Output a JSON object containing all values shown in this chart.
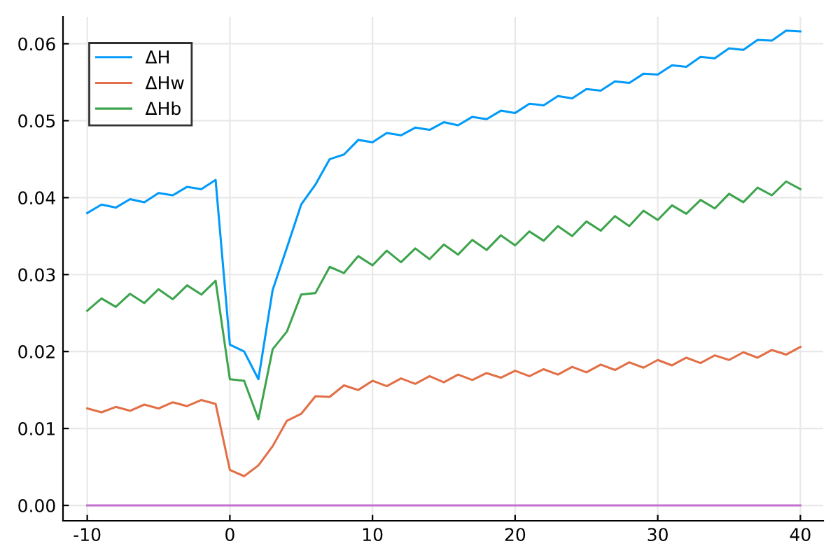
{
  "chart_data": {
    "type": "line",
    "x": [
      -10,
      -9,
      -8,
      -7,
      -6,
      -5,
      -4,
      -3,
      -2,
      -1,
      0,
      1,
      2,
      3,
      4,
      5,
      6,
      7,
      8,
      9,
      10,
      11,
      12,
      13,
      14,
      15,
      16,
      17,
      18,
      19,
      20,
      21,
      22,
      23,
      24,
      25,
      26,
      27,
      28,
      29,
      30,
      31,
      32,
      33,
      34,
      35,
      36,
      37,
      38,
      39,
      40
    ],
    "series": [
      {
        "name": "ΔH",
        "color": "#009af9",
        "values": [
          0.038,
          0.0391,
          0.0387,
          0.0398,
          0.0394,
          0.0406,
          0.0403,
          0.0414,
          0.0411,
          0.0423,
          0.0209,
          0.02,
          0.0164,
          0.028,
          0.0335,
          0.0391,
          0.0417,
          0.045,
          0.0456,
          0.0475,
          0.0472,
          0.0484,
          0.0481,
          0.0491,
          0.0488,
          0.0498,
          0.0494,
          0.0505,
          0.0502,
          0.0513,
          0.051,
          0.0522,
          0.052,
          0.0532,
          0.0529,
          0.0541,
          0.0539,
          0.0551,
          0.0549,
          0.0561,
          0.056,
          0.0572,
          0.057,
          0.0583,
          0.0581,
          0.0594,
          0.0592,
          0.0605,
          0.0604,
          0.0617,
          0.0616
        ]
      },
      {
        "name": "ΔHw",
        "color": "#e26f46",
        "values": [
          0.0126,
          0.0121,
          0.0128,
          0.0123,
          0.0131,
          0.0126,
          0.0134,
          0.0129,
          0.0137,
          0.0132,
          0.0046,
          0.0038,
          0.0052,
          0.0077,
          0.011,
          0.0119,
          0.0142,
          0.0141,
          0.0156,
          0.015,
          0.0162,
          0.0155,
          0.0165,
          0.0158,
          0.0168,
          0.016,
          0.017,
          0.0163,
          0.0172,
          0.0166,
          0.0175,
          0.0168,
          0.0177,
          0.017,
          0.018,
          0.0173,
          0.0183,
          0.0176,
          0.0186,
          0.0179,
          0.0189,
          0.0182,
          0.0192,
          0.0185,
          0.0195,
          0.0189,
          0.0199,
          0.0192,
          0.0202,
          0.0196,
          0.0206
        ]
      },
      {
        "name": "ΔHb",
        "color": "#3da44d",
        "values": [
          0.0253,
          0.0269,
          0.0258,
          0.0275,
          0.0263,
          0.0281,
          0.0268,
          0.0286,
          0.0274,
          0.0292,
          0.0164,
          0.0162,
          0.0112,
          0.0203,
          0.0226,
          0.0274,
          0.0276,
          0.031,
          0.0302,
          0.0324,
          0.0312,
          0.0331,
          0.0316,
          0.0334,
          0.032,
          0.0339,
          0.0326,
          0.0345,
          0.0332,
          0.0351,
          0.0338,
          0.0356,
          0.0344,
          0.0363,
          0.035,
          0.0369,
          0.0357,
          0.0376,
          0.0363,
          0.0383,
          0.0371,
          0.039,
          0.0379,
          0.0397,
          0.0386,
          0.0405,
          0.0394,
          0.0413,
          0.0403,
          0.0421,
          0.0411
        ]
      }
    ],
    "ref_lines": [
      {
        "axis": "y",
        "value": 0,
        "color": "#c271d2",
        "line_style": "solid"
      }
    ],
    "xlim": [
      -11.7,
      41.6
    ],
    "xticks": [
      -10,
      0,
      10,
      20,
      30,
      40
    ],
    "ylim": [
      -0.002,
      0.0635
    ],
    "yticks": [
      {
        "value": 0,
        "label": "0.00"
      },
      {
        "value": 0.01,
        "label": "0.01"
      },
      {
        "value": 0.02,
        "label": "0.02"
      },
      {
        "value": 0.03,
        "label": "0.03"
      },
      {
        "value": 0.04,
        "label": "0.04"
      },
      {
        "value": 0.05,
        "label": "0.05"
      },
      {
        "value": 0.06,
        "label": "0.06"
      }
    ],
    "grid": true,
    "legend": "top left",
    "marker": "none",
    "line_style": "solid"
  }
}
